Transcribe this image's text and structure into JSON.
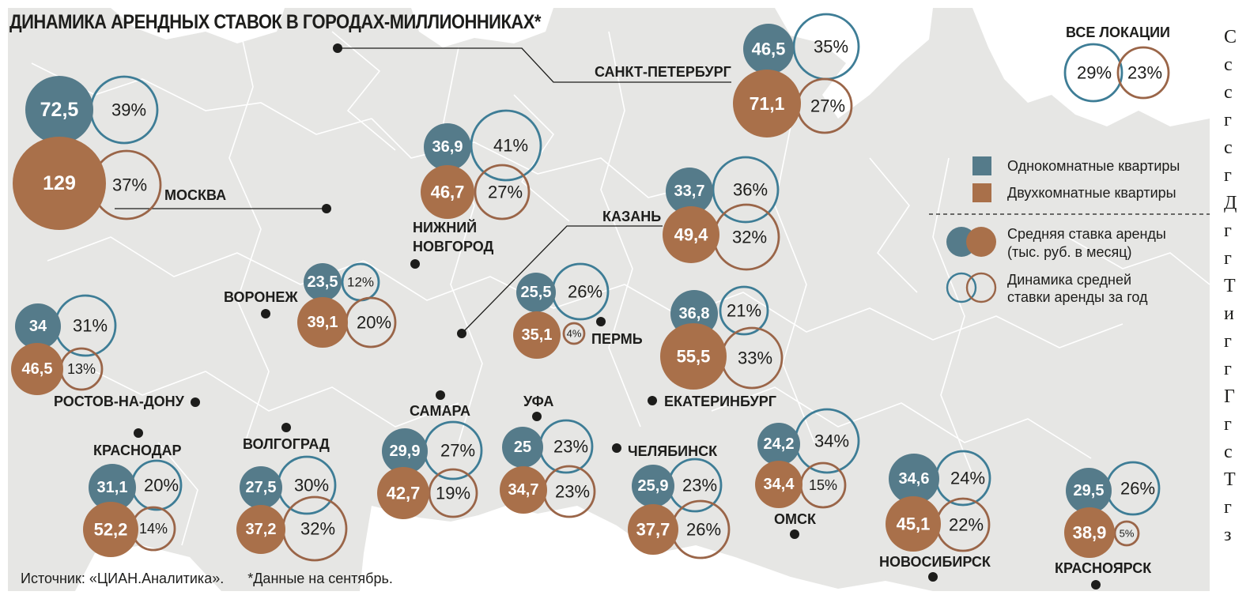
{
  "title": "ДИНАМИКА АРЕНДНЫХ СТАВОК В ГОРОДАХ-МИЛЛИОННИКАХ*",
  "source": "Источник: «ЦИАН.Аналитика».",
  "footnote": "*Данные на сентябрь.",
  "colors": {
    "one_room": "#557b8a",
    "two_room": "#a9704a",
    "ring_one_room": "#3e7d96",
    "ring_two_room": "#9a6548",
    "land": "#e6e6e4",
    "water": "#ffffff",
    "borders": "#ffffff"
  },
  "legend": {
    "one_room": "Однокомнатные квартиры",
    "two_room": "Двухкомнатные квартиры",
    "avg_rate_line1": "Средняя ставка аренды",
    "avg_rate_line2": "(тыс. руб. в месяц)",
    "dynamics_line1": "Динамика средней",
    "dynamics_line2": "ставки аренды за год"
  },
  "all_locations": {
    "label": "ВСЕ ЛОКАЦИИ",
    "one_room_change": "29%",
    "two_room_change": "23%"
  },
  "cities": [
    {
      "name": "МОСКВА",
      "one_room_rate": "72,5",
      "one_room_change": "39%",
      "two_room_rate": "129",
      "two_room_change": "37%"
    },
    {
      "name": "САНКТ-ПЕТЕРБУРГ",
      "one_room_rate": "46,5",
      "one_room_change": "35%",
      "two_room_rate": "71,1",
      "two_room_change": "27%"
    },
    {
      "name": "НИЖНИЙ\nНОВГОРОД",
      "one_room_rate": "36,9",
      "one_room_change": "41%",
      "two_room_rate": "46,7",
      "two_room_change": "27%"
    },
    {
      "name": "КАЗАНЬ",
      "one_room_rate": "33,7",
      "one_room_change": "36%",
      "two_room_rate": "49,4",
      "two_room_change": "32%"
    },
    {
      "name": "ВОРОНЕЖ",
      "one_room_rate": "23,5",
      "one_room_change": "12%",
      "two_room_rate": "39,1",
      "two_room_change": "20%"
    },
    {
      "name": "РОСТОВ-НА-ДОНУ",
      "one_room_rate": "34",
      "one_room_change": "31%",
      "two_room_rate": "46,5",
      "two_room_change": "13%"
    },
    {
      "name": "ПЕРМЬ",
      "one_room_rate": "25,5",
      "one_room_change": "26%",
      "two_room_rate": "35,1",
      "two_room_change": "4%"
    },
    {
      "name": "ЕКАТЕРИНБУРГ",
      "one_room_rate": "36,8",
      "one_room_change": "21%",
      "two_room_rate": "55,5",
      "two_room_change": "33%"
    },
    {
      "name": "КРАСНОДАР",
      "one_room_rate": "31,1",
      "one_room_change": "20%",
      "two_room_rate": "52,2",
      "two_room_change": "14%"
    },
    {
      "name": "ВОЛГОГРАД",
      "one_room_rate": "27,5",
      "one_room_change": "30%",
      "two_room_rate": "37,2",
      "two_room_change": "32%"
    },
    {
      "name": "САМАРА",
      "one_room_rate": "29,9",
      "one_room_change": "27%",
      "two_room_rate": "42,7",
      "two_room_change": "19%"
    },
    {
      "name": "УФА",
      "one_room_rate": "25",
      "one_room_change": "23%",
      "two_room_rate": "34,7",
      "two_room_change": "23%"
    },
    {
      "name": "ЧЕЛЯБИНСК",
      "one_room_rate": "25,9",
      "one_room_change": "23%",
      "two_room_rate": "37,7",
      "two_room_change": "26%"
    },
    {
      "name": "ОМСК",
      "one_room_rate": "24,2",
      "one_room_change": "34%",
      "two_room_rate": "34,4",
      "two_room_change": "15%"
    },
    {
      "name": "НОВОСИБИРСК",
      "one_room_rate": "34,6",
      "one_room_change": "24%",
      "two_room_rate": "45,1",
      "two_room_change": "22%"
    },
    {
      "name": "КРАСНОЯРСК",
      "one_room_rate": "29,5",
      "one_room_change": "26%",
      "two_room_rate": "38,9",
      "two_room_change": "5%"
    }
  ],
  "edge_text": [
    "С",
    "с",
    "с",
    "г",
    "с",
    "г",
    "Д",
    "г",
    "г",
    "Т",
    "и",
    "г",
    "г",
    "Г",
    "г",
    "с",
    "Т",
    "г",
    "з"
  ]
}
